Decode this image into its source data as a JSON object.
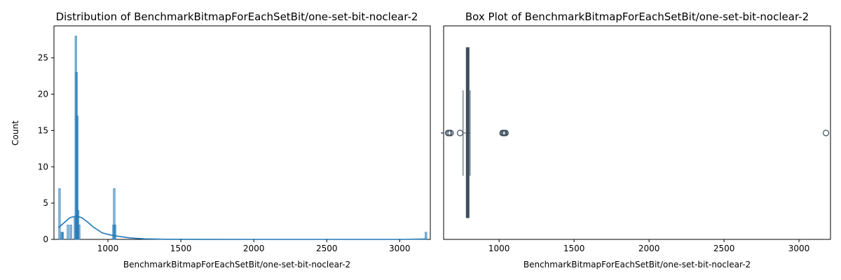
{
  "chart_data": [
    {
      "type": "histogram",
      "title": "Distribution of BenchmarkBitmapForEachSetBit/one-set-bit-noclear-2",
      "xlabel": "BenchmarkBitmapForEachSetBit/one-set-bit-noclear-2",
      "ylabel": "Count",
      "xlim": [
        630,
        3210
      ],
      "ylim": [
        0,
        29.4
      ],
      "xticks": [
        1000,
        1500,
        2000,
        2500,
        3000
      ],
      "yticks": [
        0,
        5,
        10,
        15,
        20,
        25
      ],
      "bars": [
        {
          "x": 668,
          "count": 7
        },
        {
          "x": 684,
          "count": 1
        },
        {
          "x": 690,
          "count": 1
        },
        {
          "x": 726,
          "count": 2
        },
        {
          "x": 746,
          "count": 2
        },
        {
          "x": 774,
          "count": 3
        },
        {
          "x": 780,
          "count": 28
        },
        {
          "x": 785,
          "count": 23
        },
        {
          "x": 790,
          "count": 17
        },
        {
          "x": 796,
          "count": 4
        },
        {
          "x": 803,
          "count": 2
        },
        {
          "x": 1038,
          "count": 2
        },
        {
          "x": 1043,
          "count": 7
        },
        {
          "x": 1049,
          "count": 2
        },
        {
          "x": 3180,
          "count": 1
        }
      ],
      "kde": {
        "x": [
          660,
          700,
          740,
          780,
          820,
          860,
          900,
          960,
          1020,
          1080,
          1150,
          1250,
          1400,
          1600,
          2000,
          2500,
          3000,
          3180
        ],
        "y": [
          1.6,
          2.3,
          3.0,
          3.2,
          3.0,
          2.4,
          1.7,
          0.9,
          0.6,
          0.4,
          0.2,
          0.08,
          0.02,
          0.01,
          0.0,
          0.0,
          0.0,
          0.05
        ]
      },
      "color": "#1f77b4"
    },
    {
      "type": "box",
      "title": "Box Plot of BenchmarkBitmapForEachSetBit/one-set-bit-noclear-2",
      "xlabel": "BenchmarkBitmapForEachSetBit/one-set-bit-noclear-2",
      "xlim": [
        630,
        3210
      ],
      "xticks": [
        1000,
        1500,
        2000,
        2500,
        3000
      ],
      "whisker_low": 760,
      "q1": 781,
      "median": 787,
      "q3": 795,
      "whisker_high": 807,
      "outliers": [
        660,
        668,
        677,
        740,
        1023,
        1030,
        1036,
        1043,
        3180
      ],
      "color": "#3d4e5e"
    }
  ]
}
